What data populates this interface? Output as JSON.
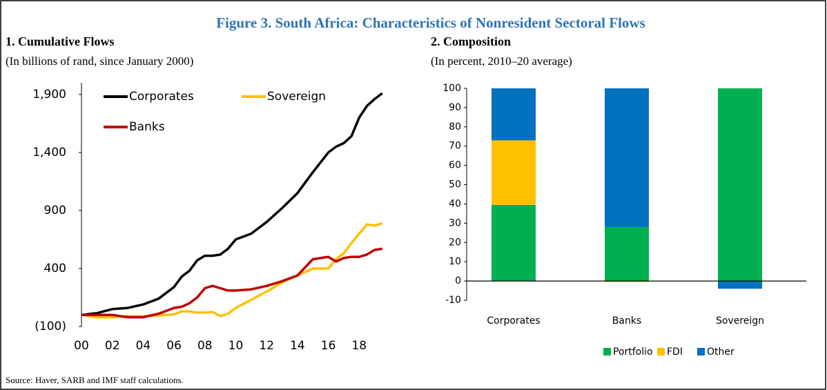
{
  "figure_title": "Figure 3. South Africa: Characteristics of Nonresident Sectoral Flows",
  "source": "Source: Haver, SARB and IMF staff calculations.",
  "chart_data": [
    {
      "type": "line",
      "title": "1. Cumulative Flows",
      "subtitle": "(In billions of rand, since January 2000)",
      "x": [
        2000,
        2001,
        2002,
        2003,
        2004,
        2005,
        2006,
        2006.5,
        2007,
        2007.5,
        2008,
        2008.5,
        2009,
        2009.5,
        2010,
        2011,
        2012,
        2013,
        2014,
        2015,
        2016,
        2016.5,
        2017,
        2017.5,
        2018,
        2018.5,
        2019,
        2019.5
      ],
      "series": [
        {
          "name": "Corporates",
          "color": "#000000",
          "values": [
            0,
            15,
            50,
            60,
            90,
            140,
            240,
            330,
            380,
            470,
            510,
            510,
            520,
            570,
            650,
            700,
            800,
            920,
            1050,
            1230,
            1400,
            1450,
            1480,
            1540,
            1700,
            1800,
            1860,
            1910
          ]
        },
        {
          "name": "Sovereign",
          "color": "#FFC000",
          "values": [
            0,
            -20,
            -20,
            -10,
            -10,
            -5,
            5,
            30,
            30,
            20,
            20,
            25,
            -10,
            10,
            60,
            130,
            200,
            280,
            340,
            400,
            400,
            480,
            530,
            620,
            700,
            780,
            770,
            790
          ]
        },
        {
          "name": "Banks",
          "color": "#C00000",
          "values": [
            0,
            0,
            0,
            -20,
            -20,
            10,
            60,
            70,
            100,
            150,
            230,
            250,
            230,
            210,
            210,
            220,
            250,
            290,
            340,
            480,
            500,
            460,
            490,
            500,
            500,
            520,
            560,
            570
          ]
        }
      ],
      "xlim": [
        2000,
        2020
      ],
      "xticks": [
        {
          "value": 2000,
          "label": "00"
        },
        {
          "value": 2002,
          "label": "02"
        },
        {
          "value": 2004,
          "label": "04"
        },
        {
          "value": 2006,
          "label": "06"
        },
        {
          "value": 2008,
          "label": "08"
        },
        {
          "value": 2010,
          "label": "10"
        },
        {
          "value": 2012,
          "label": "12"
        },
        {
          "value": 2014,
          "label": "14"
        },
        {
          "value": 2016,
          "label": "16"
        },
        {
          "value": 2018,
          "label": "18"
        }
      ],
      "ylim": [
        -100,
        2000
      ],
      "yticks": [
        {
          "value": -100,
          "label": "(100)"
        },
        400,
        900,
        {
          "value": 1400,
          "label": "1,400"
        },
        {
          "value": 1900,
          "label": "1,900"
        }
      ]
    },
    {
      "type": "stacked_bar",
      "title": "2. Composition",
      "subtitle": "(In percent, 2010–20 average)",
      "categories": [
        "Corporates",
        "Banks",
        "Sovereign"
      ],
      "series": [
        {
          "name": "Portfolio",
          "color": "#00B050",
          "values": [
            39.5,
            28,
            100
          ]
        },
        {
          "name": "FDI",
          "color": "#FFC000",
          "values": [
            33.5,
            -0.5,
            0
          ]
        },
        {
          "name": "Other",
          "color": "#0070C0",
          "values": [
            27,
            72,
            -4
          ]
        }
      ],
      "ylim": [
        -10,
        100
      ],
      "yticks": [
        -10,
        0,
        10,
        20,
        30,
        40,
        50,
        60,
        70,
        80,
        90,
        100
      ]
    }
  ]
}
